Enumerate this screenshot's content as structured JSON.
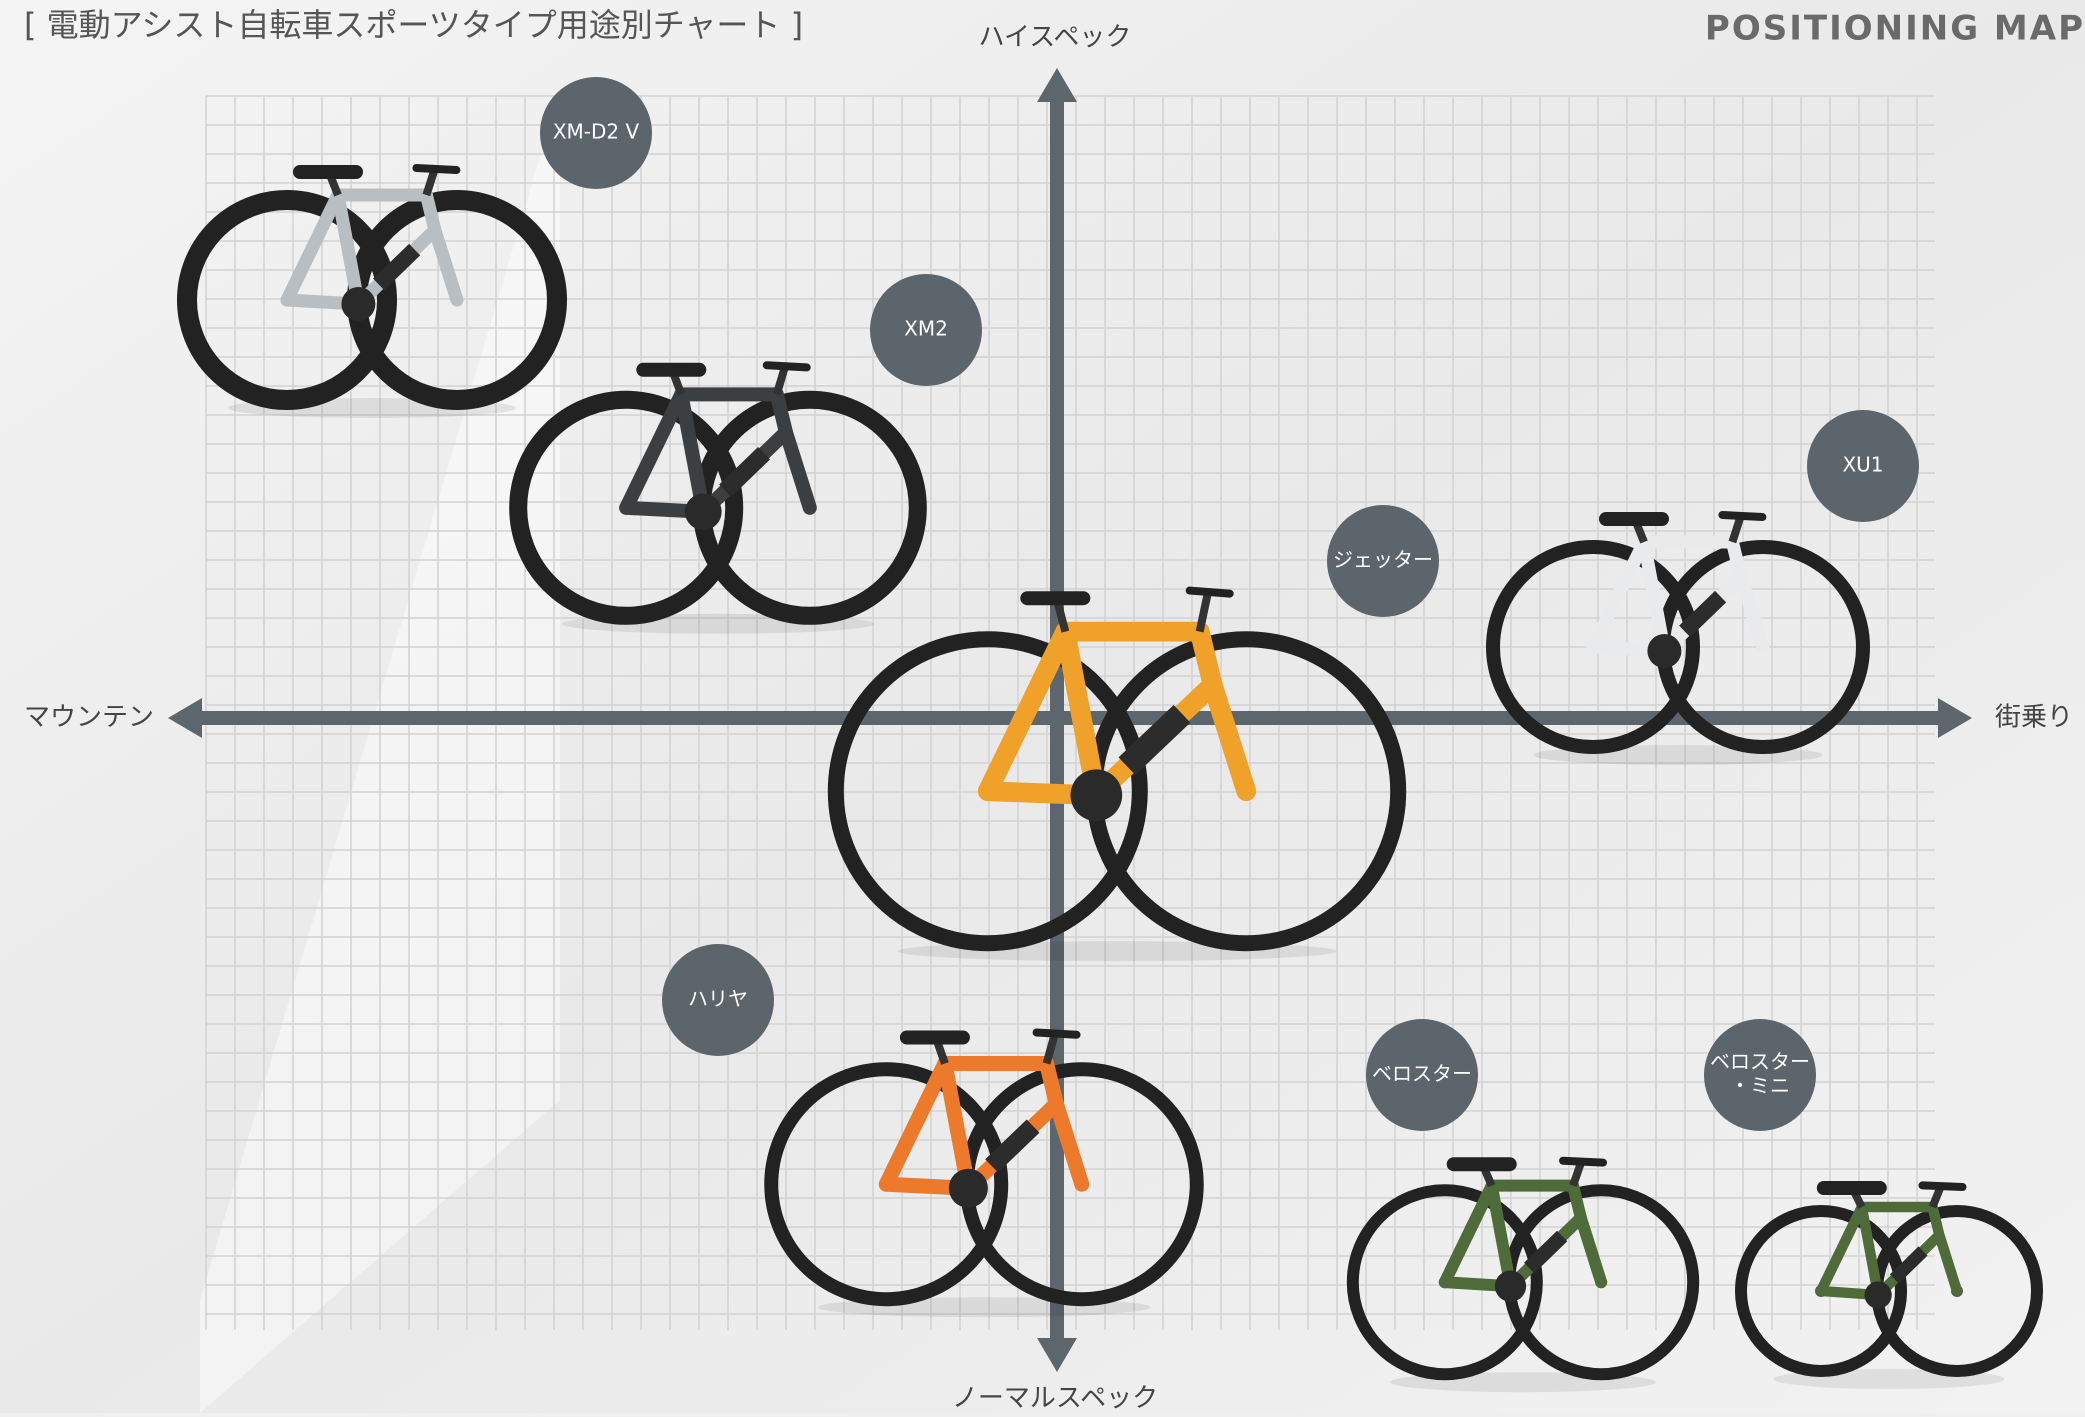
{
  "header": {
    "title": "[ 電動アシスト自転車スポーツタイプ用途別チャート ]",
    "logo": "POSITIONING MAP"
  },
  "axes": {
    "top": "ハイスペック",
    "bottom": "ノーマルスペック",
    "left": "マウンテン",
    "right": "街乗り"
  },
  "nodes": [
    {
      "lines": [
        "XM-D2 V"
      ]
    },
    {
      "lines": [
        "XM2"
      ]
    },
    {
      "lines": [
        "XU1"
      ]
    },
    {
      "lines": [
        "ジェッター"
      ]
    },
    {
      "lines": [
        "ハリヤ"
      ]
    },
    {
      "lines": [
        "ベロスター"
      ]
    },
    {
      "lines": [
        "ベロスター",
        "・ミニ"
      ]
    }
  ]
}
